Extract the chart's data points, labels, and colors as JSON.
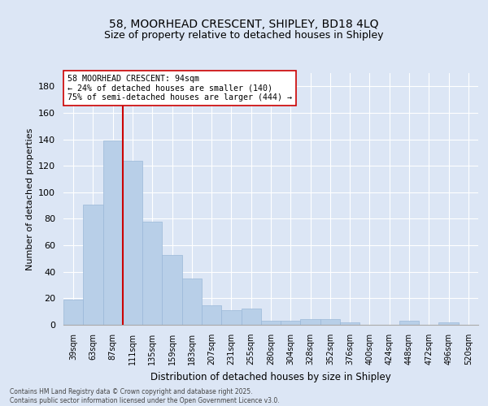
{
  "title1": "58, MOORHEAD CRESCENT, SHIPLEY, BD18 4LQ",
  "title2": "Size of property relative to detached houses in Shipley",
  "xlabel": "Distribution of detached houses by size in Shipley",
  "ylabel": "Number of detached properties",
  "bar_color": "#b8cfe8",
  "bar_edgecolor": "#9ab8d8",
  "background_color": "#dce6f5",
  "grid_color": "#ffffff",
  "categories": [
    "39sqm",
    "63sqm",
    "87sqm",
    "111sqm",
    "135sqm",
    "159sqm",
    "183sqm",
    "207sqm",
    "231sqm",
    "255sqm",
    "280sqm",
    "304sqm",
    "328sqm",
    "352sqm",
    "376sqm",
    "400sqm",
    "424sqm",
    "448sqm",
    "472sqm",
    "496sqm",
    "520sqm"
  ],
  "values": [
    19,
    91,
    139,
    124,
    78,
    53,
    35,
    15,
    11,
    12,
    3,
    3,
    4,
    4,
    2,
    0,
    0,
    3,
    0,
    2,
    0
  ],
  "ylim": [
    0,
    190
  ],
  "yticks": [
    0,
    20,
    40,
    60,
    80,
    100,
    120,
    140,
    160,
    180
  ],
  "vline_index": 2.5,
  "vline_color": "#cc0000",
  "annotation_text": "58 MOORHEAD CRESCENT: 94sqm\n← 24% of detached houses are smaller (140)\n75% of semi-detached houses are larger (444) →",
  "footer1": "Contains HM Land Registry data © Crown copyright and database right 2025.",
  "footer2": "Contains public sector information licensed under the Open Government Licence v3.0."
}
